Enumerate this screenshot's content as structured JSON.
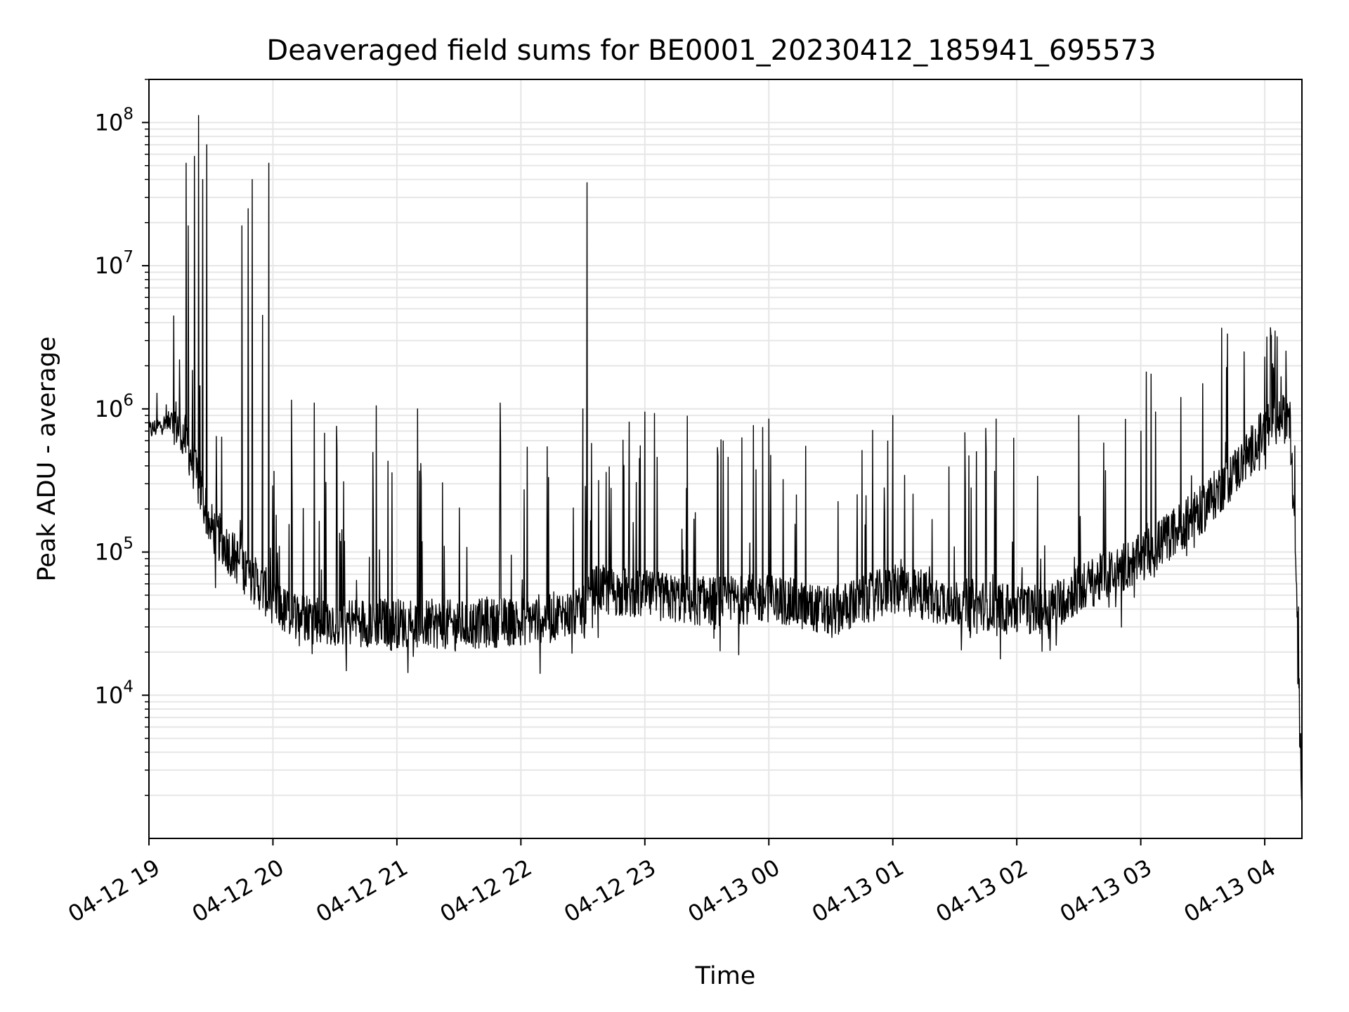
{
  "chart_data": {
    "type": "line",
    "title": "Deaveraged field sums for BE0001_20230412_185941_695573",
    "xlabel": "Time",
    "ylabel": "Peak ADU - average",
    "yscale": "log",
    "xlim": [
      "04-12 19:00",
      "04-13 04:18"
    ],
    "ylim": [
      1000,
      200000000
    ],
    "grid": true,
    "series_color": "#000000",
    "x_ticks": [
      {
        "label": "04-12 19",
        "hours": 0
      },
      {
        "label": "04-12 20",
        "hours": 1
      },
      {
        "label": "04-12 21",
        "hours": 2
      },
      {
        "label": "04-12 22",
        "hours": 3
      },
      {
        "label": "04-12 23",
        "hours": 4
      },
      {
        "label": "04-13 00",
        "hours": 5
      },
      {
        "label": "04-13 01",
        "hours": 6
      },
      {
        "label": "04-13 02",
        "hours": 7
      },
      {
        "label": "04-13 03",
        "hours": 8
      },
      {
        "label": "04-13 04",
        "hours": 9
      }
    ],
    "y_ticks": [
      {
        "value": 10000,
        "base": "10",
        "exp": "4"
      },
      {
        "value": 100000,
        "base": "10",
        "exp": "5"
      },
      {
        "value": 1000000,
        "base": "10",
        "exp": "6"
      },
      {
        "value": 10000000,
        "base": "10",
        "exp": "7"
      },
      {
        "value": 100000000,
        "base": "10",
        "exp": "8"
      }
    ],
    "baseline_profile": [
      [
        "04-12 19:00",
        700000
      ],
      [
        "04-12 19:12",
        850000
      ],
      [
        "04-12 19:18",
        600000
      ],
      [
        "04-12 19:30",
        150000
      ],
      [
        "04-12 19:48",
        70000
      ],
      [
        "04-12 20:06",
        38000
      ],
      [
        "04-12 20:30",
        33000
      ],
      [
        "04-12 21:00",
        32000
      ],
      [
        "04-12 21:30",
        31000
      ],
      [
        "04-12 22:00",
        33000
      ],
      [
        "04-12 22:30",
        38000
      ],
      [
        "04-12 22:36",
        55000
      ],
      [
        "04-12 23:00",
        50000
      ],
      [
        "04-12 23:30",
        45000
      ],
      [
        "04-13 00:00",
        48000
      ],
      [
        "04-13 00:30",
        38000
      ],
      [
        "04-13 01:00",
        55000
      ],
      [
        "04-13 01:30",
        45000
      ],
      [
        "04-13 02:00",
        40000
      ],
      [
        "04-13 02:15",
        40000
      ],
      [
        "04-13 02:30",
        55000
      ],
      [
        "04-13 03:00",
        90000
      ],
      [
        "04-13 03:30",
        200000
      ],
      [
        "04-13 03:48",
        400000
      ],
      [
        "04-13 04:00",
        700000
      ],
      [
        "04-13 04:12",
        900000
      ],
      [
        "04-13 04:15",
        100000
      ],
      [
        "04-13 04:18",
        2000
      ]
    ],
    "spikes": [
      [
        "04-12 19:18",
        52000000
      ],
      [
        "04-12 19:19",
        19000000
      ],
      [
        "04-12 19:22",
        58000000
      ],
      [
        "04-12 19:24",
        112000000
      ],
      [
        "04-12 19:26",
        40000000
      ],
      [
        "04-12 19:28",
        70000000
      ],
      [
        "04-12 19:45",
        19000000
      ],
      [
        "04-12 19:48",
        25000000
      ],
      [
        "04-12 19:50",
        40000000
      ],
      [
        "04-12 19:55",
        4500000
      ],
      [
        "04-12 19:58",
        52000000
      ],
      [
        "04-12 20:09",
        1150000
      ],
      [
        "04-12 20:20",
        1100000
      ],
      [
        "04-12 20:50",
        1050000
      ],
      [
        "04-12 21:10",
        1000000
      ],
      [
        "04-12 21:50",
        1100000
      ],
      [
        "04-12 22:30",
        1000000
      ],
      [
        "04-12 22:32",
        38000000
      ],
      [
        "04-12 23:00",
        950000
      ],
      [
        "04-13 00:00",
        850000
      ],
      [
        "04-13 01:00",
        900000
      ],
      [
        "04-13 01:50",
        850000
      ],
      [
        "04-13 02:30",
        900000
      ],
      [
        "04-13 03:05",
        1750000
      ],
      [
        "04-13 03:30",
        1500000
      ],
      [
        "04-13 03:50",
        2500000
      ],
      [
        "04-13 04:00",
        2300000
      ],
      [
        "04-13 04:05",
        3500000
      ],
      [
        "04-13 04:16",
        12000
      ]
    ]
  }
}
